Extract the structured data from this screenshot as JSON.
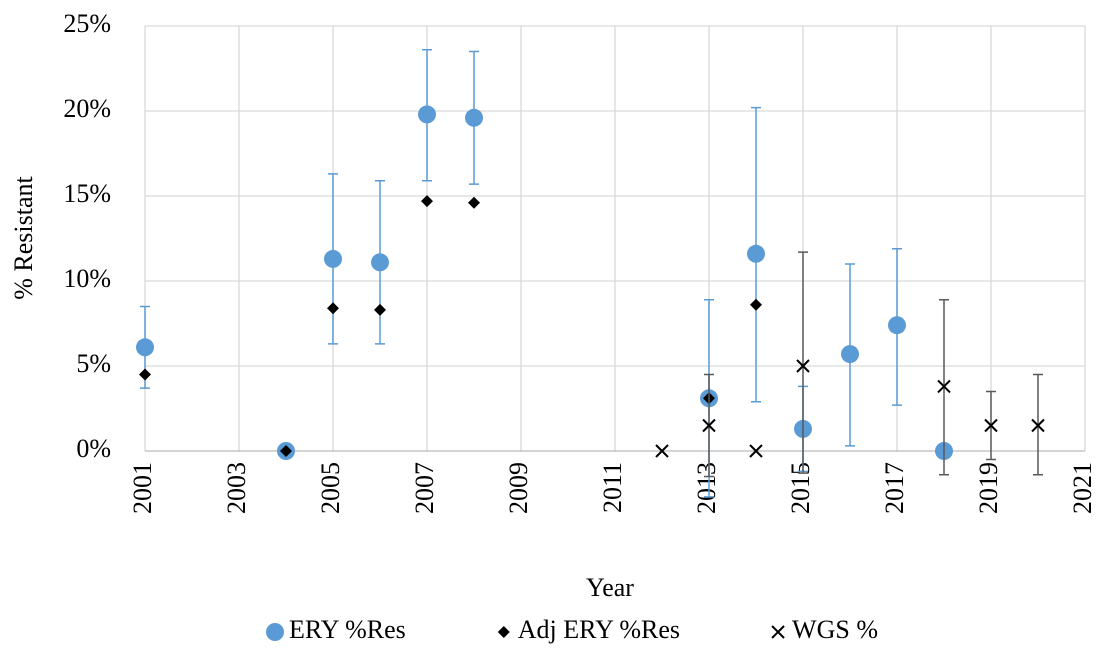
{
  "chart_data": {
    "type": "scatter",
    "x_label": "Year",
    "y_label": "% Resistant",
    "xlim": [
      2001,
      2021
    ],
    "xticks": [
      2001,
      2003,
      2005,
      2007,
      2009,
      2011,
      2013,
      2015,
      2017,
      2019,
      2021
    ],
    "ylim": [
      0,
      25
    ],
    "yticks": [
      {
        "value": 0,
        "label": "0%"
      },
      {
        "value": 5,
        "label": "5%"
      },
      {
        "value": 10,
        "label": "10%"
      },
      {
        "value": 15,
        "label": "15%"
      },
      {
        "value": 20,
        "label": "20%"
      },
      {
        "value": 25,
        "label": "25%"
      }
    ],
    "grid": true,
    "legend": "bottom",
    "series": [
      {
        "name": "ERY %Res",
        "color": "#5b9bd5",
        "marker": "circle",
        "error_color": "#5b9bd5",
        "x": [
          2001,
          2004,
          2005,
          2006,
          2007,
          2008,
          2013,
          2014,
          2015,
          2016,
          2017,
          2018
        ],
        "values": [
          6.1,
          0,
          11.3,
          11.1,
          19.8,
          19.6,
          3.1,
          11.6,
          1.3,
          5.7,
          7.4,
          0
        ],
        "lower": [
          3.7,
          null,
          6.3,
          6.3,
          15.9,
          15.7,
          -2.7,
          2.9,
          -1.2,
          0.3,
          2.7,
          null
        ],
        "upper": [
          8.5,
          null,
          16.3,
          15.9,
          23.6,
          23.5,
          8.9,
          20.2,
          3.8,
          11.0,
          11.9,
          null
        ]
      },
      {
        "name": "Adj ERY %Res",
        "color": "#000000",
        "marker": "diamond",
        "x": [
          2001,
          2004,
          2005,
          2006,
          2007,
          2008,
          2013,
          2014
        ],
        "values": [
          4.5,
          0,
          8.4,
          8.3,
          14.7,
          14.6,
          3.1,
          8.6
        ]
      },
      {
        "name": "WGS %",
        "color": "#000000",
        "marker": "x",
        "error_color": "#595959",
        "x": [
          2012,
          2013,
          2014,
          2015,
          2018,
          2019,
          2020
        ],
        "values": [
          0,
          1.5,
          0,
          5.0,
          3.8,
          1.5,
          1.5
        ],
        "lower": [
          null,
          -1.5,
          null,
          -1.3,
          -1.4,
          -0.5,
          -1.4
        ],
        "upper": [
          null,
          4.5,
          null,
          11.7,
          8.9,
          3.5,
          4.5
        ]
      }
    ]
  }
}
